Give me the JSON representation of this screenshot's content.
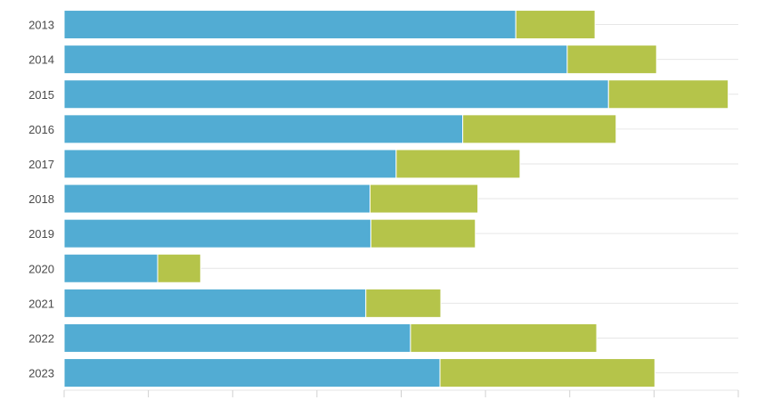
{
  "chart_data": {
    "type": "bar",
    "orientation": "horizontal",
    "stacked": true,
    "categories": [
      "2013",
      "2014",
      "2015",
      "2016",
      "2017",
      "2018",
      "2019",
      "2020",
      "2021",
      "2022",
      "2023"
    ],
    "series": [
      {
        "color": "#52acd3",
        "values": [
          536,
          597,
          646,
          473,
          394,
          363,
          364,
          111,
          358,
          411,
          446
        ]
      },
      {
        "color": "#b5c44a",
        "values": [
          94,
          106,
          142,
          182,
          147,
          128,
          124,
          51,
          89,
          221,
          255
        ]
      }
    ],
    "xlim": [
      0,
      800
    ],
    "x_ticks": [
      0,
      100,
      200,
      300,
      400,
      500,
      600,
      700,
      800
    ],
    "x_tick_labels_visible": false,
    "grid": true,
    "legend": "none",
    "title": "",
    "xlabel": "",
    "ylabel": ""
  }
}
